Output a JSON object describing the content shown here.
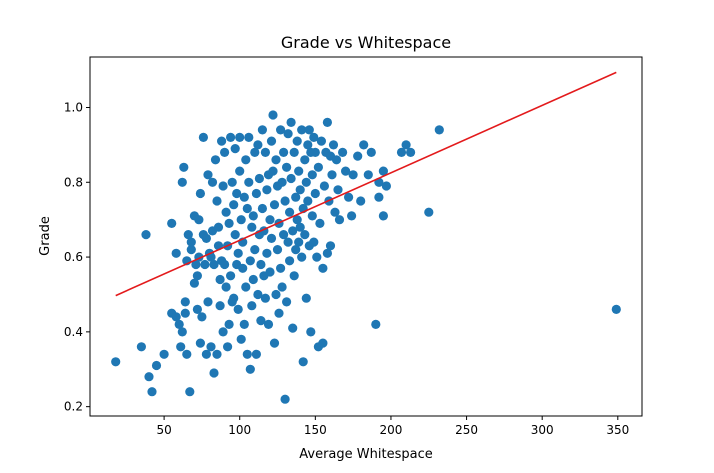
{
  "chart_data": {
    "type": "scatter",
    "title": "Grade vs Whitespace",
    "xlabel": "Average Whitespace",
    "ylabel": "Grade",
    "xlim": [
      1,
      366
    ],
    "ylim": [
      0.175,
      1.135
    ],
    "xticks": [
      50,
      100,
      150,
      200,
      250,
      300,
      350
    ],
    "yticks": [
      0.2,
      0.4,
      0.6,
      0.8,
      1.0
    ],
    "xtick_labels": [
      "50",
      "100",
      "150",
      "200",
      "250",
      "300",
      "350"
    ],
    "ytick_labels": [
      "0.2",
      "0.4",
      "0.6",
      "0.8",
      "1.0"
    ],
    "grid": false,
    "colors": {
      "points": "#1f77b4",
      "fit_line": "#e31a1c"
    },
    "fit_line": {
      "x": [
        18,
        349
      ],
      "y": [
        0.497,
        1.094
      ]
    },
    "points": [
      [
        18,
        0.32
      ],
      [
        35,
        0.36
      ],
      [
        40,
        0.28
      ],
      [
        42,
        0.24
      ],
      [
        45,
        0.31
      ],
      [
        38,
        0.66
      ],
      [
        50,
        0.34
      ],
      [
        55,
        0.69
      ],
      [
        55,
        0.45
      ],
      [
        58,
        0.61
      ],
      [
        58,
        0.44
      ],
      [
        60,
        0.42
      ],
      [
        61,
        0.36
      ],
      [
        62,
        0.4
      ],
      [
        62,
        0.8
      ],
      [
        63,
        0.84
      ],
      [
        64,
        0.48
      ],
      [
        64,
        0.45
      ],
      [
        65,
        0.34
      ],
      [
        65,
        0.59
      ],
      [
        66,
        0.66
      ],
      [
        67,
        0.24
      ],
      [
        68,
        0.62
      ],
      [
        68,
        0.64
      ],
      [
        70,
        0.71
      ],
      [
        70,
        0.53
      ],
      [
        71,
        0.58
      ],
      [
        72,
        0.46
      ],
      [
        72,
        0.55
      ],
      [
        73,
        0.6
      ],
      [
        73,
        0.7
      ],
      [
        74,
        0.37
      ],
      [
        74,
        0.77
      ],
      [
        75,
        0.44
      ],
      [
        76,
        0.66
      ],
      [
        76,
        0.92
      ],
      [
        77,
        0.58
      ],
      [
        78,
        0.34
      ],
      [
        78,
        0.65
      ],
      [
        79,
        0.82
      ],
      [
        79,
        0.48
      ],
      [
        80,
        0.61
      ],
      [
        81,
        0.6
      ],
      [
        81,
        0.36
      ],
      [
        82,
        0.8
      ],
      [
        82,
        0.67
      ],
      [
        83,
        0.29
      ],
      [
        83,
        0.58
      ],
      [
        84,
        0.86
      ],
      [
        85,
        0.75
      ],
      [
        85,
        0.34
      ],
      [
        86,
        0.68
      ],
      [
        86,
        0.63
      ],
      [
        87,
        0.54
      ],
      [
        87,
        0.47
      ],
      [
        88,
        0.91
      ],
      [
        88,
        0.59
      ],
      [
        89,
        0.4
      ],
      [
        89,
        0.79
      ],
      [
        90,
        0.88
      ],
      [
        90,
        0.58
      ],
      [
        91,
        0.72
      ],
      [
        91,
        0.52
      ],
      [
        92,
        0.36
      ],
      [
        92,
        0.63
      ],
      [
        93,
        0.42
      ],
      [
        93,
        0.69
      ],
      [
        94,
        0.92
      ],
      [
        94,
        0.55
      ],
      [
        95,
        0.8
      ],
      [
        95,
        0.48
      ],
      [
        96,
        0.74
      ],
      [
        96,
        0.49
      ],
      [
        97,
        0.89
      ],
      [
        97,
        0.66
      ],
      [
        98,
        0.77
      ],
      [
        98,
        0.58
      ],
      [
        99,
        0.46
      ],
      [
        99,
        0.61
      ],
      [
        100,
        0.92
      ],
      [
        100,
        0.83
      ],
      [
        101,
        0.7
      ],
      [
        101,
        0.38
      ],
      [
        102,
        0.64
      ],
      [
        102,
        0.57
      ],
      [
        103,
        0.76
      ],
      [
        103,
        0.42
      ],
      [
        104,
        0.86
      ],
      [
        104,
        0.52
      ],
      [
        105,
        0.34
      ],
      [
        105,
        0.73
      ],
      [
        106,
        0.92
      ],
      [
        106,
        0.8
      ],
      [
        107,
        0.59
      ],
      [
        107,
        0.3
      ],
      [
        108,
        0.68
      ],
      [
        108,
        0.47
      ],
      [
        109,
        0.71
      ],
      [
        109,
        0.54
      ],
      [
        110,
        0.88
      ],
      [
        110,
        0.62
      ],
      [
        111,
        0.34
      ],
      [
        111,
        0.77
      ],
      [
        112,
        0.9
      ],
      [
        112,
        0.5
      ],
      [
        113,
        0.66
      ],
      [
        113,
        0.81
      ],
      [
        114,
        0.58
      ],
      [
        114,
        0.43
      ],
      [
        115,
        0.94
      ],
      [
        115,
        0.73
      ],
      [
        116,
        0.55
      ],
      [
        116,
        0.67
      ],
      [
        117,
        0.88
      ],
      [
        117,
        0.49
      ],
      [
        118,
        0.78
      ],
      [
        118,
        0.61
      ],
      [
        119,
        0.42
      ],
      [
        119,
        0.82
      ],
      [
        120,
        0.7
      ],
      [
        120,
        0.56
      ],
      [
        121,
        0.91
      ],
      [
        121,
        0.65
      ],
      [
        122,
        0.98
      ],
      [
        122,
        0.83
      ],
      [
        123,
        0.37
      ],
      [
        123,
        0.74
      ],
      [
        124,
        0.5
      ],
      [
        124,
        0.86
      ],
      [
        125,
        0.62
      ],
      [
        125,
        0.79
      ],
      [
        126,
        0.45
      ],
      [
        126,
        0.69
      ],
      [
        127,
        0.94
      ],
      [
        127,
        0.57
      ],
      [
        128,
        0.8
      ],
      [
        128,
        0.52
      ],
      [
        129,
        0.88
      ],
      [
        129,
        0.66
      ],
      [
        130,
        0.22
      ],
      [
        130,
        0.75
      ],
      [
        131,
        0.48
      ],
      [
        131,
        0.84
      ],
      [
        132,
        0.64
      ],
      [
        132,
        0.93
      ],
      [
        133,
        0.59
      ],
      [
        133,
        0.72
      ],
      [
        134,
        0.96
      ],
      [
        134,
        0.81
      ],
      [
        135,
        0.41
      ],
      [
        135,
        0.67
      ],
      [
        136,
        0.88
      ],
      [
        136,
        0.55
      ],
      [
        137,
        0.76
      ],
      [
        137,
        0.62
      ],
      [
        138,
        0.91
      ],
      [
        138,
        0.7
      ],
      [
        139,
        0.83
      ],
      [
        139,
        0.64
      ],
      [
        140,
        0.68
      ],
      [
        140,
        0.78
      ],
      [
        141,
        0.94
      ],
      [
        141,
        0.6
      ],
      [
        142,
        0.32
      ],
      [
        142,
        0.73
      ],
      [
        143,
        0.86
      ],
      [
        143,
        0.66
      ],
      [
        144,
        0.8
      ],
      [
        144,
        0.49
      ],
      [
        145,
        0.9
      ],
      [
        145,
        0.75
      ],
      [
        146,
        0.94
      ],
      [
        146,
        0.63
      ],
      [
        147,
        0.88
      ],
      [
        147,
        0.4
      ],
      [
        148,
        0.71
      ],
      [
        148,
        0.82
      ],
      [
        149,
        0.92
      ],
      [
        149,
        0.64
      ],
      [
        150,
        0.77
      ],
      [
        150,
        0.88
      ],
      [
        151,
        0.6
      ],
      [
        152,
        0.84
      ],
      [
        152,
        0.36
      ],
      [
        153,
        0.69
      ],
      [
        154,
        0.91
      ],
      [
        155,
        0.57
      ],
      [
        155,
        0.37
      ],
      [
        156,
        0.79
      ],
      [
        157,
        0.88
      ],
      [
        158,
        0.96
      ],
      [
        158,
        0.61
      ],
      [
        159,
        0.75
      ],
      [
        160,
        0.87
      ],
      [
        160,
        0.63
      ],
      [
        161,
        0.82
      ],
      [
        162,
        0.9
      ],
      [
        163,
        0.72
      ],
      [
        164,
        0.86
      ],
      [
        165,
        0.78
      ],
      [
        166,
        0.7
      ],
      [
        168,
        0.88
      ],
      [
        170,
        0.83
      ],
      [
        172,
        0.76
      ],
      [
        174,
        0.71
      ],
      [
        175,
        0.82
      ],
      [
        178,
        0.87
      ],
      [
        180,
        0.75
      ],
      [
        182,
        0.9
      ],
      [
        185,
        0.82
      ],
      [
        187,
        0.88
      ],
      [
        190,
        0.42
      ],
      [
        192,
        0.8
      ],
      [
        192,
        0.76
      ],
      [
        195,
        0.83
      ],
      [
        195,
        0.71
      ],
      [
        197,
        0.79
      ],
      [
        207,
        0.88
      ],
      [
        210,
        0.9
      ],
      [
        213,
        0.88
      ],
      [
        225,
        0.72
      ],
      [
        232,
        0.94
      ],
      [
        349,
        0.46
      ]
    ]
  }
}
